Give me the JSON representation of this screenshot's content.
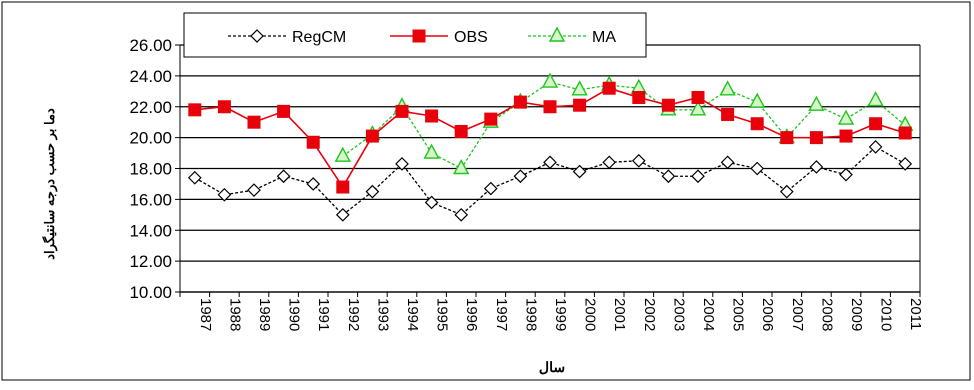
{
  "chart_data": {
    "type": "line",
    "title": "",
    "xlabel": "سال",
    "ylabel": "دما بر حسب درجه سانتیگراد",
    "ylim": [
      10,
      26
    ],
    "yticks": [
      "10.00",
      "12.00",
      "14.00",
      "16.00",
      "18.00",
      "20.00",
      "22.00",
      "24.00",
      "26.00"
    ],
    "grid": true,
    "legend_position": "top-left",
    "categories": [
      "1987",
      "1988",
      "1989",
      "1990",
      "1991",
      "1992",
      "1993",
      "1994",
      "1995",
      "1996",
      "1997",
      "1998",
      "1999",
      "2000",
      "2001",
      "2002",
      "2003",
      "2004",
      "2005",
      "2006",
      "2007",
      "2008",
      "2009",
      "2010",
      "2011"
    ],
    "series": [
      {
        "name": "RegCM",
        "color": "#000000",
        "marker": "diamond",
        "dash": true,
        "values": [
          17.4,
          16.3,
          16.6,
          17.5,
          17.0,
          15.0,
          16.5,
          18.3,
          15.8,
          15.0,
          16.7,
          17.5,
          18.4,
          17.8,
          18.4,
          18.5,
          17.5,
          17.5,
          18.4,
          18.0,
          16.5,
          18.1,
          17.6,
          19.4,
          18.3
        ]
      },
      {
        "name": "OBS",
        "color": "#e8000b",
        "marker": "square",
        "dash": false,
        "values": [
          21.8,
          22.0,
          21.0,
          21.7,
          19.7,
          16.8,
          20.1,
          21.7,
          21.4,
          20.4,
          21.2,
          22.3,
          22.0,
          22.1,
          23.2,
          22.6,
          22.1,
          22.6,
          21.5,
          20.9,
          20.0,
          20.0,
          20.1,
          20.9,
          20.3
        ]
      },
      {
        "name": "MA",
        "color": "#1fc41f",
        "marker": "triangle",
        "dash": true,
        "values": [
          null,
          null,
          null,
          null,
          null,
          18.8,
          20.2,
          22.0,
          19.0,
          18.0,
          21.0,
          22.3,
          23.6,
          23.1,
          23.4,
          23.2,
          21.8,
          21.8,
          23.1,
          22.3,
          20.0,
          22.1,
          21.2,
          22.4,
          20.8
        ]
      }
    ]
  }
}
